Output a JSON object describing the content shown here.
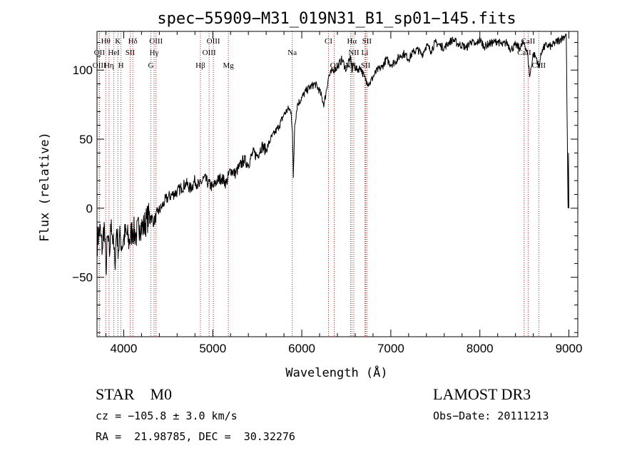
{
  "chart_data": {
    "type": "line",
    "title": "spec−55909−M31_019N31_B1_sp01−145.fits",
    "xlabel": "Wavelength (Å)",
    "ylabel": "Flux (relative)",
    "xlim": [
      3700,
      9100
    ],
    "ylim": [
      -93,
      128
    ],
    "xticks": [
      4000,
      5000,
      6000,
      7000,
      8000,
      9000
    ],
    "yticks": [
      -50,
      0,
      50,
      100
    ],
    "series": [
      {
        "name": "spectrum",
        "x": [
          3700,
          3730,
          3760,
          3780,
          3800,
          3820,
          3840,
          3860,
          3880,
          3900,
          3920,
          3940,
          3960,
          3980,
          4000,
          4030,
          4060,
          4100,
          4140,
          4180,
          4220,
          4260,
          4300,
          4340,
          4380,
          4420,
          4460,
          4500,
          4550,
          4600,
          4650,
          4700,
          4750,
          4800,
          4850,
          4900,
          4950,
          5000,
          5050,
          5100,
          5150,
          5200,
          5250,
          5300,
          5350,
          5400,
          5450,
          5500,
          5550,
          5600,
          5650,
          5700,
          5750,
          5800,
          5850,
          5880,
          5895,
          5905,
          5920,
          5950,
          6000,
          6050,
          6100,
          6150,
          6200,
          6250,
          6300,
          6350,
          6400,
          6450,
          6500,
          6550,
          6563,
          6580,
          6620,
          6660,
          6700,
          6730,
          6760,
          6800,
          6850,
          6900,
          6950,
          7000,
          7050,
          7100,
          7150,
          7200,
          7250,
          7300,
          7350,
          7400,
          7450,
          7500,
          7550,
          7600,
          7650,
          7700,
          7750,
          7800,
          7850,
          7900,
          7950,
          8000,
          8050,
          8100,
          8150,
          8200,
          8250,
          8300,
          8350,
          8400,
          8450,
          8500,
          8540,
          8560,
          8600,
          8640,
          8660,
          8700,
          8750,
          8800,
          8850,
          8900,
          8940,
          8970,
          8990,
          8995,
          9000
        ],
        "y": [
          -25,
          -15,
          -30,
          -10,
          -45,
          -20,
          -35,
          -8,
          -25,
          -40,
          -15,
          -30,
          -20,
          -28,
          -22,
          -18,
          -25,
          -15,
          -20,
          -12,
          -14,
          -8,
          -5,
          -10,
          -3,
          0,
          5,
          8,
          10,
          12,
          15,
          18,
          14,
          20,
          16,
          22,
          18,
          15,
          20,
          22,
          18,
          28,
          25,
          30,
          35,
          32,
          40,
          38,
          45,
          42,
          50,
          55,
          60,
          68,
          72,
          70,
          55,
          22,
          60,
          75,
          80,
          85,
          88,
          90,
          85,
          75,
          95,
          100,
          102,
          108,
          100,
          110,
          98,
          104,
          100,
          102,
          95,
          92,
          90,
          95,
          100,
          102,
          108,
          104,
          106,
          110,
          112,
          108,
          113,
          115,
          111,
          118,
          114,
          120,
          118,
          116,
          120,
          122,
          119,
          118,
          116,
          121,
          118,
          122,
          117,
          119,
          120,
          121,
          118,
          120,
          115,
          118,
          116,
          120,
          110,
          95,
          112,
          108,
          102,
          115,
          118,
          117,
          120,
          122,
          124,
          126,
          0,
          40,
          0
        ],
        "color": "#000000"
      }
    ],
    "lines": [
      {
        "name": "Hθ",
        "x": 3798,
        "row": 1
      },
      {
        "name": "K",
        "x": 3934,
        "row": 1
      },
      {
        "name": "Hδ",
        "x": 4102,
        "row": 1
      },
      {
        "name": "OIII",
        "x": 4363,
        "row": 1
      },
      {
        "name": "OIII",
        "x": 5007,
        "row": 1
      },
      {
        "name": "CI",
        "x": 6300,
        "row": 1
      },
      {
        "name": "Hα",
        "x": 6563,
        "row": 1
      },
      {
        "name": "SII",
        "x": 6731,
        "row": 1
      },
      {
        "name": "CaII",
        "x": 8542,
        "row": 1
      },
      {
        "name": "OII",
        "x": 3727,
        "row": 2
      },
      {
        "name": "HeI",
        "x": 3889,
        "row": 2
      },
      {
        "name": "SII",
        "x": 4072,
        "row": 2
      },
      {
        "name": "Hγ",
        "x": 4341,
        "row": 2
      },
      {
        "name": "OIII",
        "x": 4959,
        "row": 2
      },
      {
        "name": "Na",
        "x": 5893,
        "row": 2
      },
      {
        "name": "NII",
        "x": 6584,
        "row": 2
      },
      {
        "name": "Li",
        "x": 6708,
        "row": 2
      },
      {
        "name": "CaII",
        "x": 8498,
        "row": 2
      },
      {
        "name": "OIII",
        "x": 3726,
        "row": 3
      },
      {
        "name": "Hη",
        "x": 3835,
        "row": 3
      },
      {
        "name": "H",
        "x": 3969,
        "row": 3
      },
      {
        "name": "G",
        "x": 4305,
        "row": 3
      },
      {
        "name": "Hβ",
        "x": 4861,
        "row": 3
      },
      {
        "name": "Mg",
        "x": 5175,
        "row": 3
      },
      {
        "name": "OI",
        "x": 6364,
        "row": 3
      },
      {
        "name": "NII",
        "x": 6548,
        "row": 3
      },
      {
        "name": "SII",
        "x": 6717,
        "row": 3
      },
      {
        "name": "CaII",
        "x": 8662,
        "row": 3
      }
    ],
    "line_color": "#b22222"
  },
  "footer": {
    "object": "STAR    M0",
    "survey": "LAMOST DR3",
    "cz": "cz = −105.8 ± 3.0 km/s",
    "obs_date": "Obs−Date: 20111213",
    "coords": "RA =  21.98785, DEC =  30.32276"
  }
}
